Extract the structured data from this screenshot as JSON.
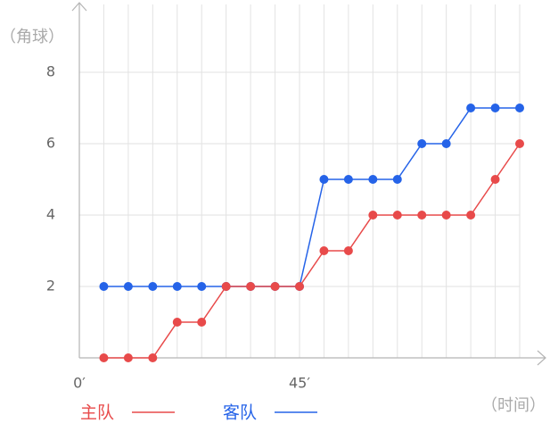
{
  "chart_data": {
    "type": "line",
    "y_label": "（角球）",
    "x_label": "（时间）",
    "x": [
      5,
      10,
      15,
      20,
      25,
      30,
      35,
      40,
      45,
      50,
      55,
      60,
      65,
      70,
      75,
      80,
      85,
      90
    ],
    "series": [
      {
        "name": "主队",
        "color": "#e84a4a",
        "values": [
          0,
          0,
          0,
          1,
          1,
          2,
          2,
          2,
          2,
          3,
          3,
          4,
          4,
          4,
          4,
          4,
          5,
          6
        ]
      },
      {
        "name": "客队",
        "color": "#2563e8",
        "values": [
          2,
          2,
          2,
          2,
          2,
          2,
          2,
          2,
          2,
          5,
          5,
          5,
          5,
          6,
          6,
          7,
          7,
          7
        ]
      }
    ],
    "xlim": [
      0,
      90
    ],
    "xticks": [
      {
        "value": 0,
        "label": "0′"
      },
      {
        "value": 45,
        "label": "45′"
      }
    ],
    "ylim": [
      0,
      10
    ],
    "yticks": [
      2,
      4,
      6,
      8
    ],
    "grid": true
  }
}
